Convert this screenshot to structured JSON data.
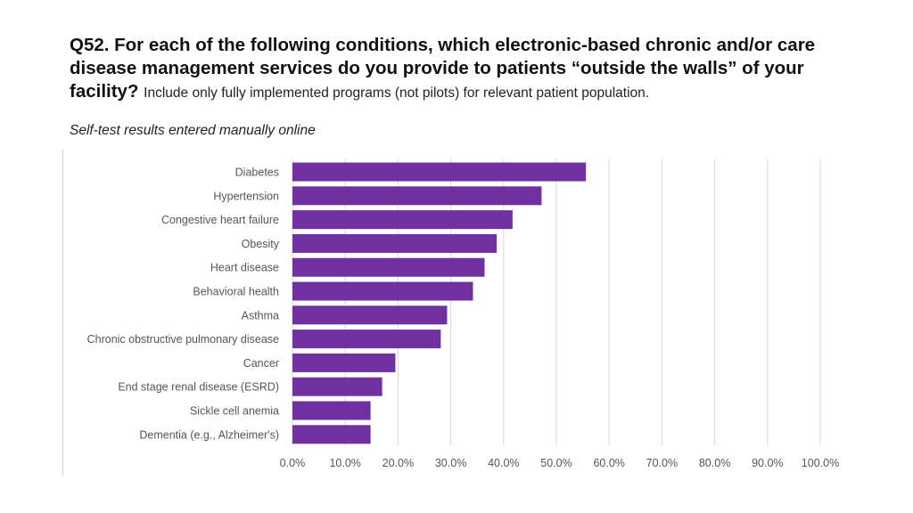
{
  "title": {
    "main": "Q52. For each of the following conditions, which electronic-based chronic and/or care disease management services do you provide to patients “outside the walls” of your facility?",
    "sub": "Include only fully implemented programs (not pilots) for relevant patient population."
  },
  "subtitle": "Self-test results entered manually online",
  "colors": {
    "bar": "#7030a0",
    "grid": "#d9d9d9"
  },
  "chart_data": {
    "type": "bar",
    "orientation": "horizontal",
    "categories": [
      "Diabetes",
      "Hypertension",
      "Congestive heart failure",
      "Obesity",
      "Heart disease",
      "Behavioral health",
      "Asthma",
      "Chronic obstructive pulmonary disease",
      "Cancer",
      "End stage renal disease (ESRD)",
      "Sickle cell anemia",
      "Dementia (e.g., Alzheimer's)"
    ],
    "values": [
      55.6,
      47.2,
      41.7,
      38.7,
      36.4,
      34.2,
      29.3,
      28.1,
      19.5,
      17.0,
      14.8,
      14.8
    ],
    "xlim": [
      0,
      100
    ],
    "xticks": [
      0,
      10,
      20,
      30,
      40,
      50,
      60,
      70,
      80,
      90,
      100
    ],
    "xtick_labels": [
      "0.0%",
      "10.0%",
      "20.0%",
      "30.0%",
      "40.0%",
      "50.0%",
      "60.0%",
      "70.0%",
      "80.0%",
      "90.0%",
      "100.0%"
    ],
    "grid": true
  }
}
